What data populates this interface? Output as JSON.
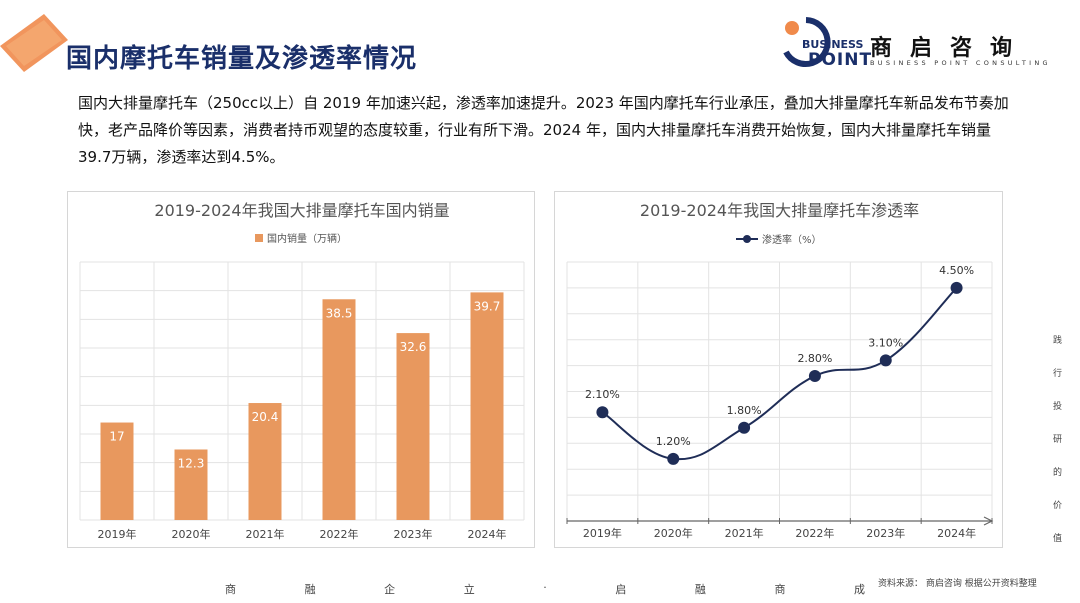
{
  "page": {
    "title": "国内摩托车销量及渗透率情况",
    "intro": "国内大排量摩托车（250cc以上）自 2019 年加速兴起，渗透率加速提升。2023 年国内摩托车行业承压，叠加大排量摩托车新品发布节奏加快，老产品降价等因素，消费者持币观望的态度较重，行业有所下滑。2024 年，国内大排量摩托车消费开始恢复，国内大排量摩托车销量39.7万辆，渗透率达到4.5%。"
  },
  "brand": {
    "en_line1": "BUSINESS",
    "en_line2": "POINT",
    "cn_name": "商启咨询",
    "en_tagline": "BUSINESS POINT CONSULTING"
  },
  "side_text": [
    "践",
    "行",
    "投",
    "研",
    "的",
    "价",
    "值"
  ],
  "footer": {
    "motto": [
      "商",
      "融",
      "企",
      "立",
      "·",
      "启",
      "融",
      "商",
      "成"
    ],
    "source": "资料来源： 商启咨询 根据公开资料整理"
  },
  "colors": {
    "title": "#1a2f6a",
    "bar": "#e8985e",
    "line": "#1f2d57",
    "grid": "#e3e3e3"
  },
  "chart_data": [
    {
      "type": "bar",
      "title": "2019-2024年我国大排量摩托车国内销量",
      "categories": [
        "2019年",
        "2020年",
        "2021年",
        "2022年",
        "2023年",
        "2024年"
      ],
      "series": [
        {
          "name": "国内销量（万辆）",
          "values": [
            17,
            12.3,
            20.4,
            38.5,
            32.6,
            39.7
          ]
        }
      ],
      "data_labels": [
        "17",
        "12.3",
        "20.4",
        "38.5",
        "32.6",
        "39.7"
      ],
      "ylim": [
        0,
        45
      ],
      "grid": true,
      "legend": "top"
    },
    {
      "type": "line",
      "title": "2019-2024年我国大排量摩托车渗透率",
      "categories": [
        "2019年",
        "2020年",
        "2021年",
        "2022年",
        "2023年",
        "2024年"
      ],
      "series": [
        {
          "name": "渗透率（%）",
          "values": [
            2.1,
            1.2,
            1.8,
            2.8,
            3.1,
            4.5
          ]
        }
      ],
      "data_labels": [
        "2.10%",
        "1.20%",
        "1.80%",
        "2.80%",
        "3.10%",
        "4.50%"
      ],
      "ylim": [
        0,
        5
      ],
      "grid": true,
      "legend": "top"
    }
  ]
}
